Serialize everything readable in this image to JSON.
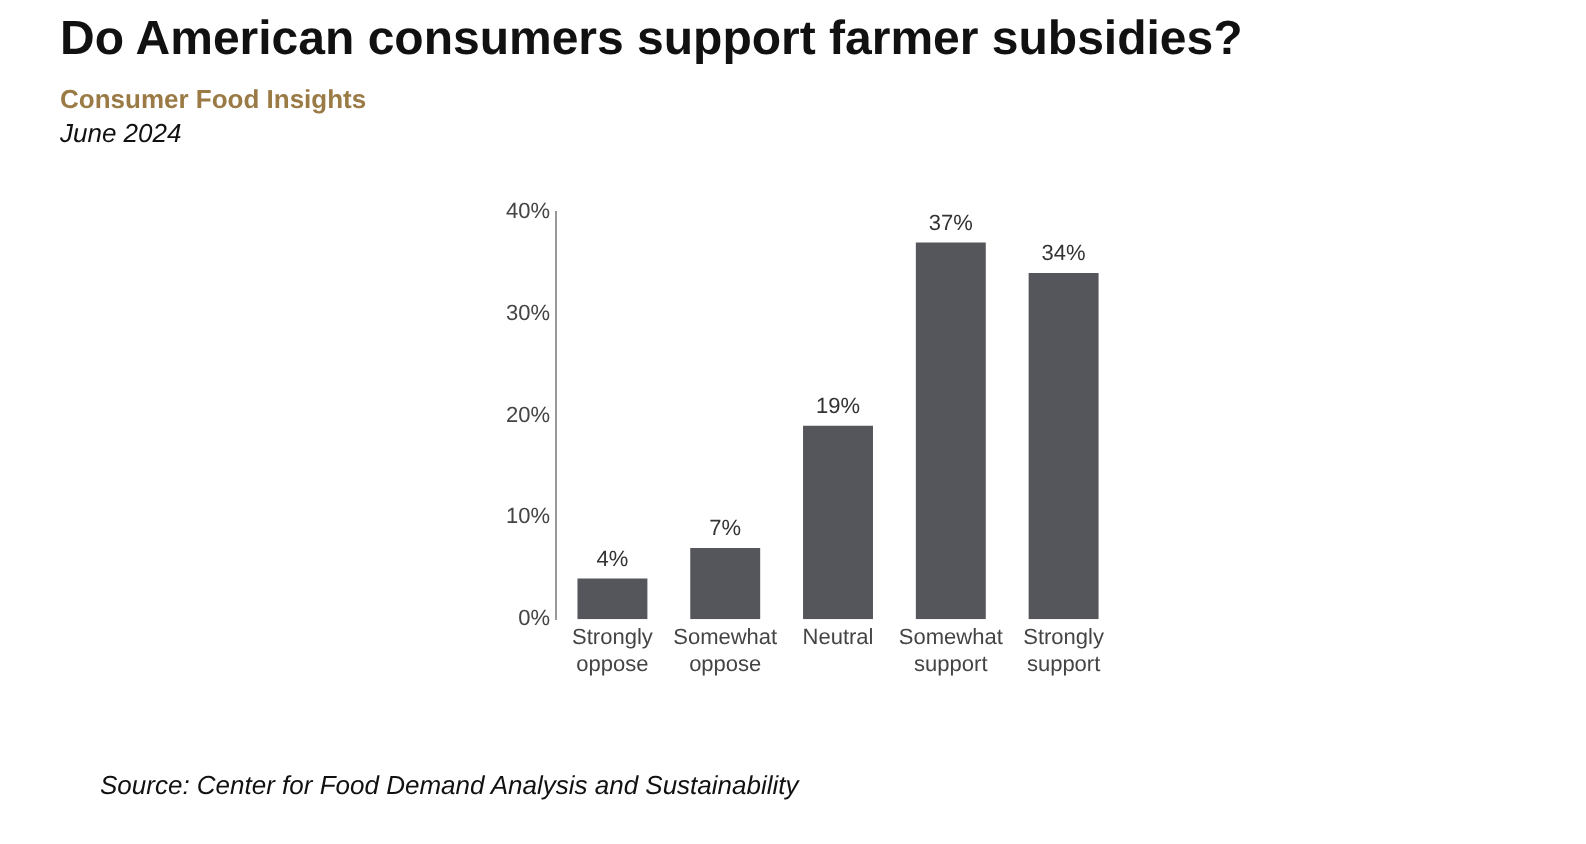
{
  "chart_data": {
    "type": "bar",
    "title": "Do American consumers support farmer subsidies?",
    "subtitle": "Consumer Food Insights",
    "annotations": [
      "June 2024",
      "Source:  Center for Food Demand Analysis and Sustainability"
    ],
    "categories": [
      "Strongly oppose",
      "Somewhat oppose",
      "Neutral",
      "Somewhat support",
      "Strongly support"
    ],
    "values": [
      4,
      7,
      19,
      37,
      34
    ],
    "value_labels": [
      "4%",
      "7%",
      "19%",
      "37%",
      "34%"
    ],
    "color": "#54565b",
    "ylim": [
      0,
      40
    ],
    "yticks": [
      {
        "value": 0,
        "label": "0%"
      },
      {
        "value": 10,
        "label": "10%"
      },
      {
        "value": 20,
        "label": "20%"
      },
      {
        "value": 30,
        "label": "30%"
      },
      {
        "value": 40,
        "label": "40%"
      }
    ],
    "grid": false,
    "legend": false
  }
}
